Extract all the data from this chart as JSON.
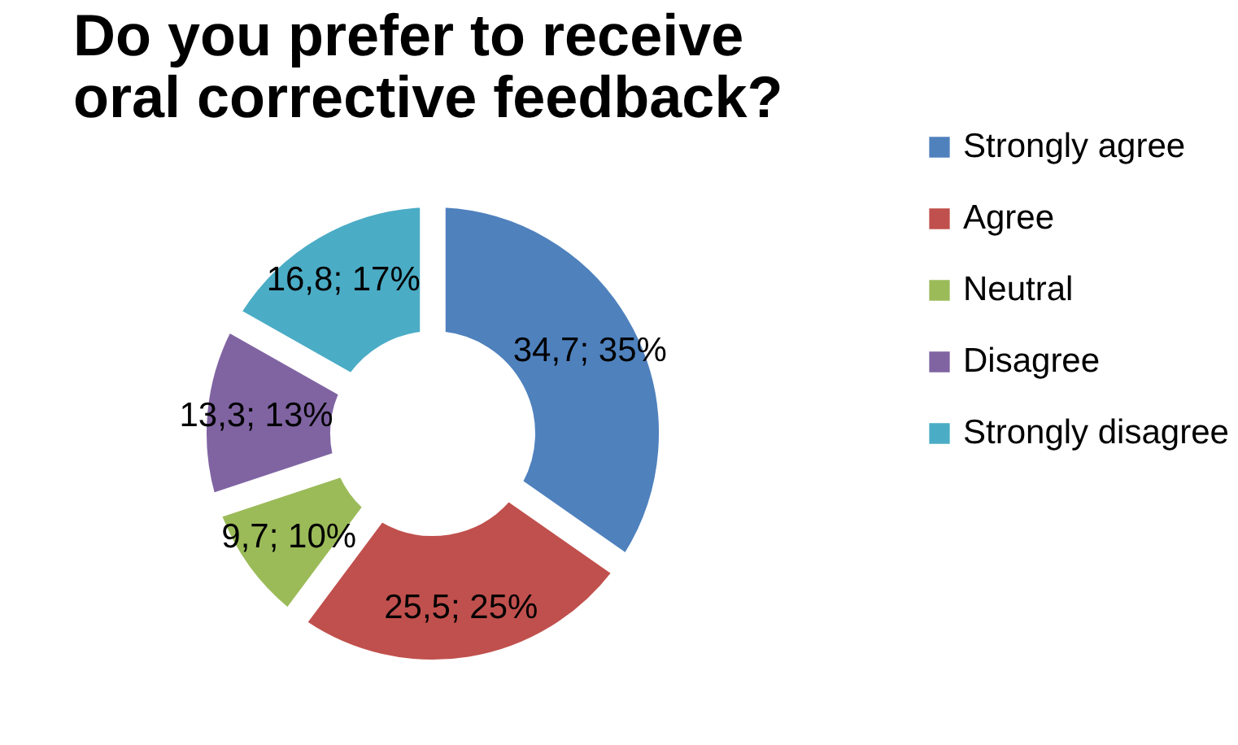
{
  "chart_data": {
    "type": "donut",
    "title": "Do you prefer to receive oral corrective feedback?",
    "categories": [
      "Strongly agree",
      "Agree",
      "Neutral",
      "Disagree",
      "Strongly disagree"
    ],
    "values": [
      34.7,
      25.5,
      9.7,
      13.3,
      16.8
    ],
    "value_labels": [
      "34,7; 35%",
      "25,5; 25%",
      "9,7; 10%",
      "13,3; 13%",
      "16,8; 17%"
    ],
    "colors": [
      "#4f81bd",
      "#c0504d",
      "#9bbb59",
      "#8064a2",
      "#4bacc6"
    ],
    "legend": "right"
  }
}
